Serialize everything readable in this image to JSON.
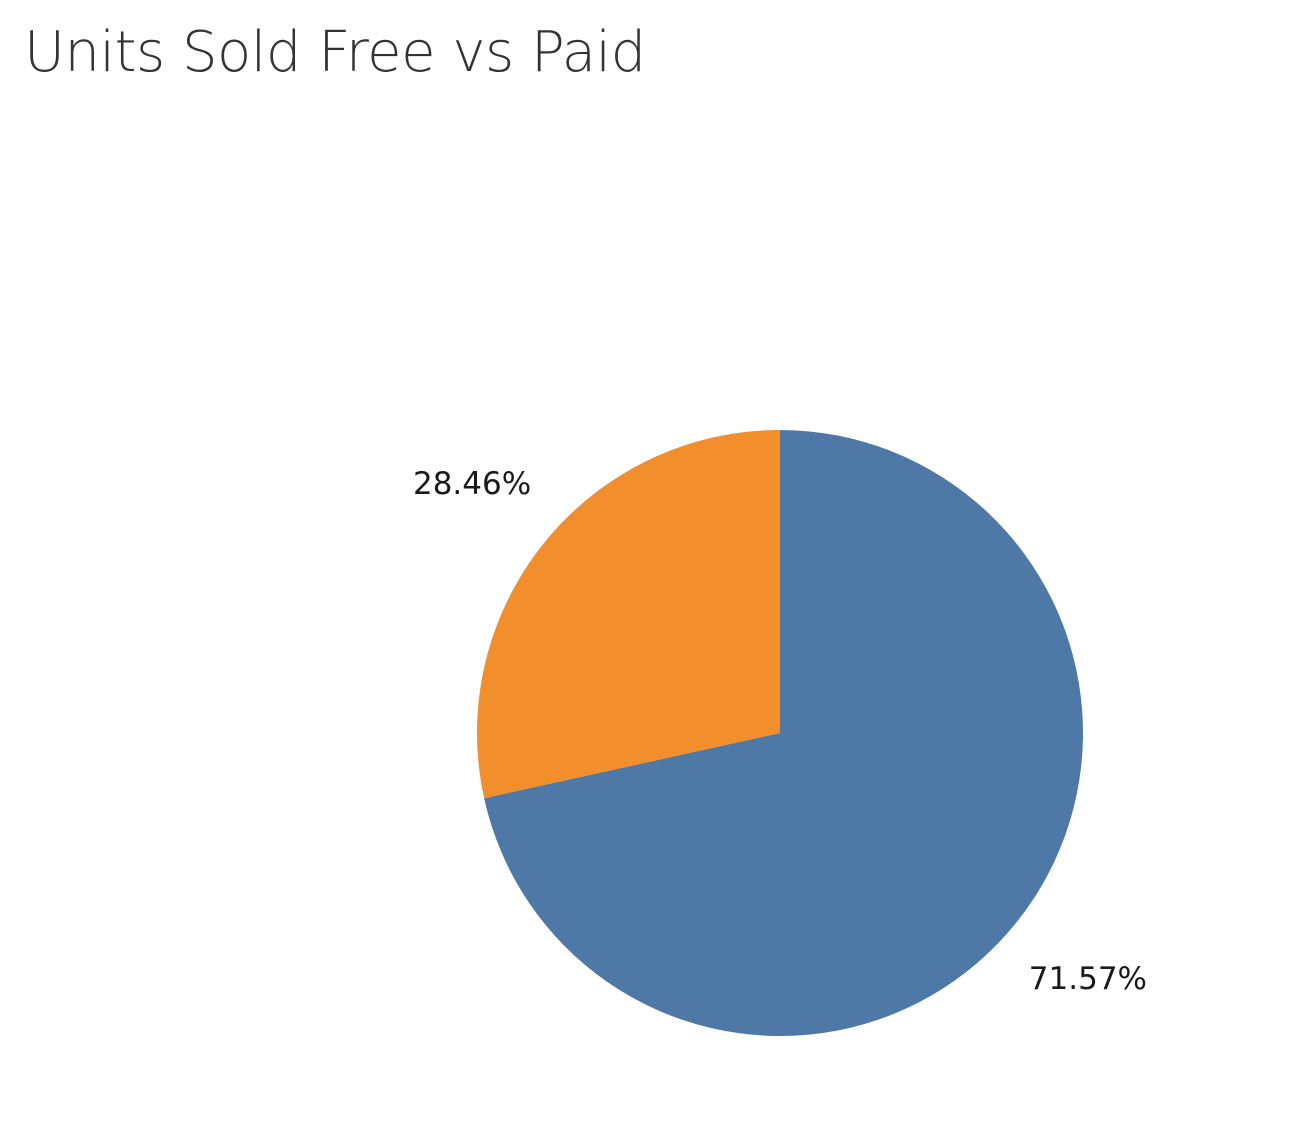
{
  "chart_data": {
    "type": "pie",
    "title": "Units Sold Free vs Paid",
    "slices": [
      {
        "value": 71.57,
        "label": "71.57%",
        "color": "#4e79a7"
      },
      {
        "value": 28.46,
        "label": "28.46%",
        "color": "#f28e2b"
      }
    ],
    "start_angle_deg": 0,
    "direction": "clockwise"
  }
}
